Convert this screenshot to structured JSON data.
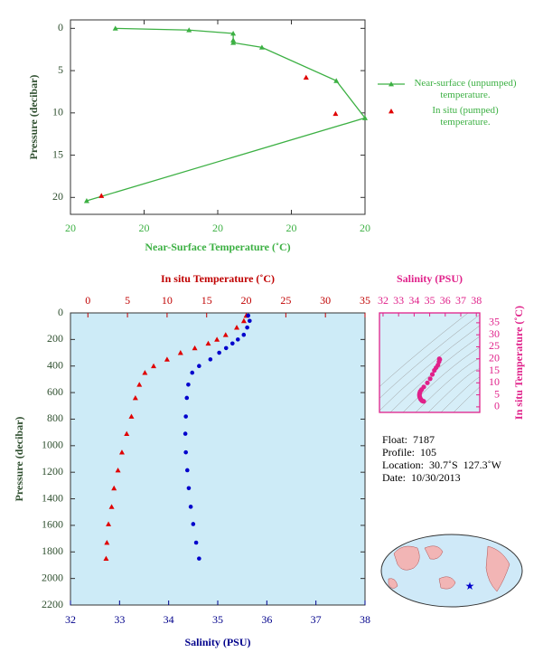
{
  "chart_data": [
    {
      "type": "line",
      "x_title": "Near-Surface Temperature (˚C)",
      "y_title": "Pressure (decibar)",
      "xlim": [
        19.8,
        20.2
      ],
      "xticks": [
        {
          "value": 19.8,
          "label": "20"
        },
        {
          "value": 19.9,
          "label": "20"
        },
        {
          "value": 20.0,
          "label": "20"
        },
        {
          "value": 20.1,
          "label": "20"
        },
        {
          "value": 20.2,
          "label": "20"
        }
      ],
      "ylim": [
        -1,
        22
      ],
      "y_reversed": true,
      "yticks": [
        0,
        5,
        10,
        15,
        20
      ],
      "legend": "right",
      "series": [
        {
          "name": "Near-surface (unpumped) temperature.",
          "color": "#3cb043",
          "type": "line",
          "x": [
            19.861,
            19.961,
            20.021,
            20.021,
            20.021,
            20.06,
            20.161,
            20.2,
            19.822
          ],
          "values": [
            0,
            0.2,
            0.6,
            1.4,
            1.7,
            2.25,
            6.2,
            10.6,
            20.4
          ]
        },
        {
          "name": "In situ (pumped) temperature.",
          "color": "#e00000",
          "type": "scatter",
          "x": [
            20.12,
            20.16,
            19.842
          ],
          "values": [
            5.8,
            10.1,
            19.8
          ]
        }
      ]
    },
    {
      "type": "profile",
      "y_title": "Pressure (decibar)",
      "x_title": "Salinity (PSU)",
      "x2_title": "In situ Temperature (˚C)",
      "background": "#cdebf7",
      "y": [
        20,
        60,
        110,
        165,
        200,
        230,
        265,
        300,
        350,
        400,
        450,
        540,
        640,
        780,
        910,
        1050,
        1185,
        1320,
        1460,
        1590,
        1730,
        1850
      ],
      "ylim": [
        0,
        2200
      ],
      "y_reversed": true,
      "yticks": [
        0,
        200,
        400,
        600,
        800,
        1000,
        1200,
        1400,
        1600,
        1800,
        2000,
        2200
      ],
      "xlim": [
        32,
        38
      ],
      "xticks": [
        32,
        33,
        34,
        35,
        36,
        37,
        38
      ],
      "x2lim": [
        -2.2,
        35
      ],
      "x2ticks": [
        0,
        5,
        10,
        15,
        20,
        25,
        30,
        35
      ],
      "series": [
        {
          "color": "#e00000",
          "marker": "triangle",
          "axis": "x2",
          "values": [
            20.0,
            19.7,
            18.8,
            17.4,
            16.3,
            15.2,
            13.5,
            11.7,
            10.0,
            8.3,
            7.2,
            6.5,
            6.0,
            5.5,
            4.9,
            4.3,
            3.8,
            3.3,
            3.0,
            2.6,
            2.4,
            2.3
          ]
        },
        {
          "color": "#0000cc",
          "marker": "circle",
          "values": [
            35.62,
            35.65,
            35.6,
            35.53,
            35.41,
            35.3,
            35.17,
            35.03,
            34.85,
            34.62,
            34.48,
            34.4,
            34.37,
            34.35,
            34.34,
            34.35,
            34.38,
            34.41,
            34.45,
            34.5,
            34.56,
            34.62
          ]
        }
      ]
    },
    {
      "type": "ts",
      "x_title": "Salinity (PSU)",
      "y_title": "In situ Temperature (˚C)",
      "color": "#e0218a",
      "xlim": [
        31.77,
        38.22
      ],
      "xticks": [
        32,
        33,
        34,
        35,
        36,
        37,
        38
      ],
      "ylim": [
        -2.3,
        39.1
      ],
      "yticks": [
        0,
        5,
        10,
        15,
        20,
        25,
        30,
        35
      ]
    }
  ],
  "float_info": {
    "float": "Float:  7187",
    "profile": "Profile:  105",
    "location": "Location:  30.7˚S  127.3˚W",
    "date": "Date:  10/30/2013"
  }
}
